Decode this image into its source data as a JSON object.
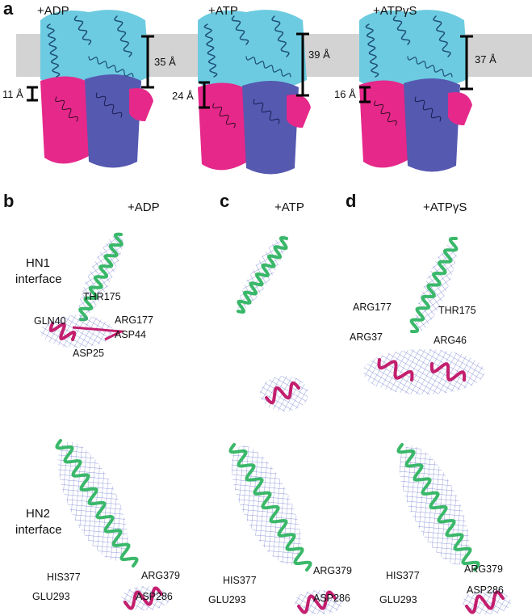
{
  "panel_a": {
    "label": "a",
    "conditions": [
      "+ADP",
      "+ATP",
      "+ATPγS"
    ],
    "membrane_distances": [
      "35 Å",
      "39 Å",
      "37 Å"
    ],
    "interface_distances": [
      "11 Å",
      "24 Å",
      "16 Å"
    ]
  },
  "panel_b": {
    "label": "b",
    "condition": "+ADP",
    "hn1_residues": [
      "THR175",
      "GLN40",
      "ARG177",
      "ASP44",
      "ASP25"
    ],
    "hn2_residues": [
      "HIS377",
      "ARG379",
      "GLU293",
      "ASP286"
    ]
  },
  "panel_c": {
    "label": "c",
    "condition": "+ATP",
    "hn2_residues": [
      "HIS377",
      "ARG379",
      "GLU293",
      "ASP286"
    ]
  },
  "panel_d": {
    "label": "d",
    "condition": "+ATPγS",
    "hn1_residues": [
      "ARG177",
      "THR175",
      "ARG37",
      "ARG46"
    ],
    "hn2_residues": [
      "HIS377",
      "ARG379",
      "GLU293",
      "ASP286"
    ]
  },
  "row_labels": {
    "hn1": [
      "HN1",
      "interface"
    ],
    "hn2": [
      "HN2",
      "interface"
    ]
  }
}
